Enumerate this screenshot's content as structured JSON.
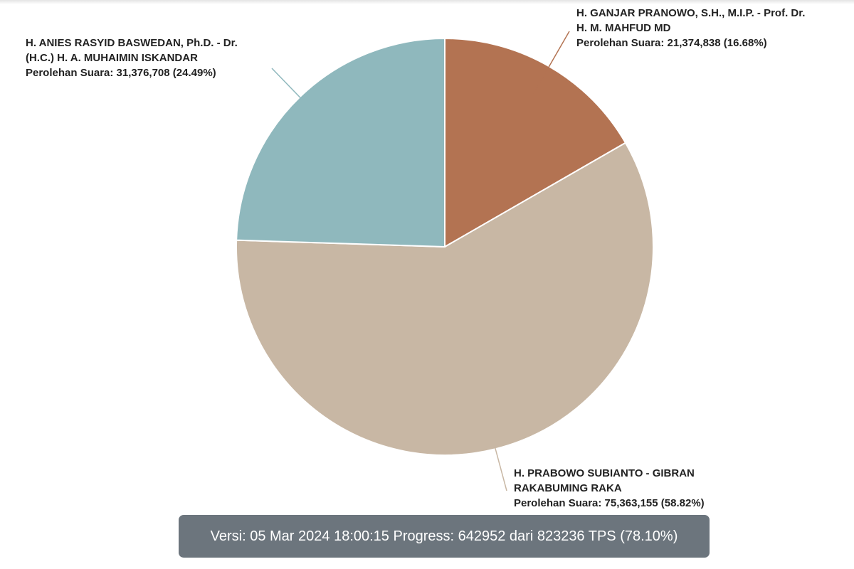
{
  "chart_data": {
    "type": "pie",
    "categories": [
      "H. GANJAR PRANOWO, S.H., M.I.P. - Prof. Dr. H. M. MAHFUD MD",
      "H. PRABOWO SUBIANTO - GIBRAN RAKABUMING RAKA",
      "H. ANIES RASYID BASWEDAN, Ph.D. - Dr. (H.C.) H. A. MUHAIMIN ISKANDAR"
    ],
    "values": [
      21374838,
      75363155,
      31376708
    ],
    "value_labels": [
      "Perolehan Suara: 21,374,838 (16.68%)",
      "Perolehan Suara: 75,363,155 (58.82%)",
      "Perolehan Suara: 31,376,708 (24.49%)"
    ],
    "colors": [
      "#b37352",
      "#c8b7a4",
      "#8fb8bd"
    ],
    "caption": "Versi: 05 Mar 2024 18:00:15 Progress: 642952 dari 823236 TPS (78.10%)"
  }
}
